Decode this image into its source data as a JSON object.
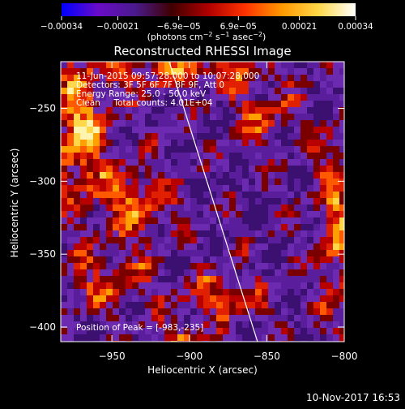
{
  "chart_data": {
    "type": "heatmap",
    "title": "Reconstructed RHESSI Image",
    "xlabel": "Heliocentric X (arcsec)",
    "ylabel": "Heliocentric Y (arcsec)",
    "xlim": [
      -983,
      -800
    ],
    "ylim": [
      -410,
      -218
    ],
    "xticks": [
      -950,
      -900,
      -850,
      -800
    ],
    "xtick_labels": [
      "−950",
      "−900",
      "−850",
      "−800"
    ],
    "yticks": [
      -250,
      -300,
      -350,
      -400
    ],
    "ytick_labels": [
      "−250",
      "−300",
      "−350",
      "−400"
    ],
    "colorbar": {
      "range": [
        -0.00034,
        0.00034
      ],
      "ticks": [
        -0.00034,
        -0.00021,
        -6.9e-05,
        6.9e-05,
        0.00021,
        0.00034
      ],
      "tick_labels": [
        "−0.00034",
        "−0.00021",
        "−6.9e−05",
        "6.9e−05",
        "0.00021",
        "0.00034"
      ],
      "unit_main": "(photons cm",
      "unit_sup1": "−2",
      "unit_mid1": " s",
      "unit_sup2": "−1",
      "unit_mid2": " asec",
      "unit_sup3": "−2",
      "unit_end": ")",
      "colors": [
        "#0000ff",
        "#6a0cc8",
        "#4a1a8c",
        "#400000",
        "#b00000",
        "#ff3300",
        "#ff9900",
        "#ffd84a",
        "#ffffff"
      ]
    },
    "annotations": [
      "11-Jun-2015 09:57:28.000 to 10:07:28.000",
      "Detectors: 3F 5F 6F 7F 8F 9F, Att 0",
      "Energy Range: 25.0 - 50.0 keV",
      "Clean     Total counts: 4.01E+04"
    ],
    "peak_label": "Position of Peak = [-983,-235]",
    "limb_line": {
      "x": [
        -913,
        -856
      ],
      "y": [
        -218,
        -410
      ]
    },
    "background_color": "#4a1a8c"
  },
  "footer_date": "10-Nov-2017 16:53"
}
